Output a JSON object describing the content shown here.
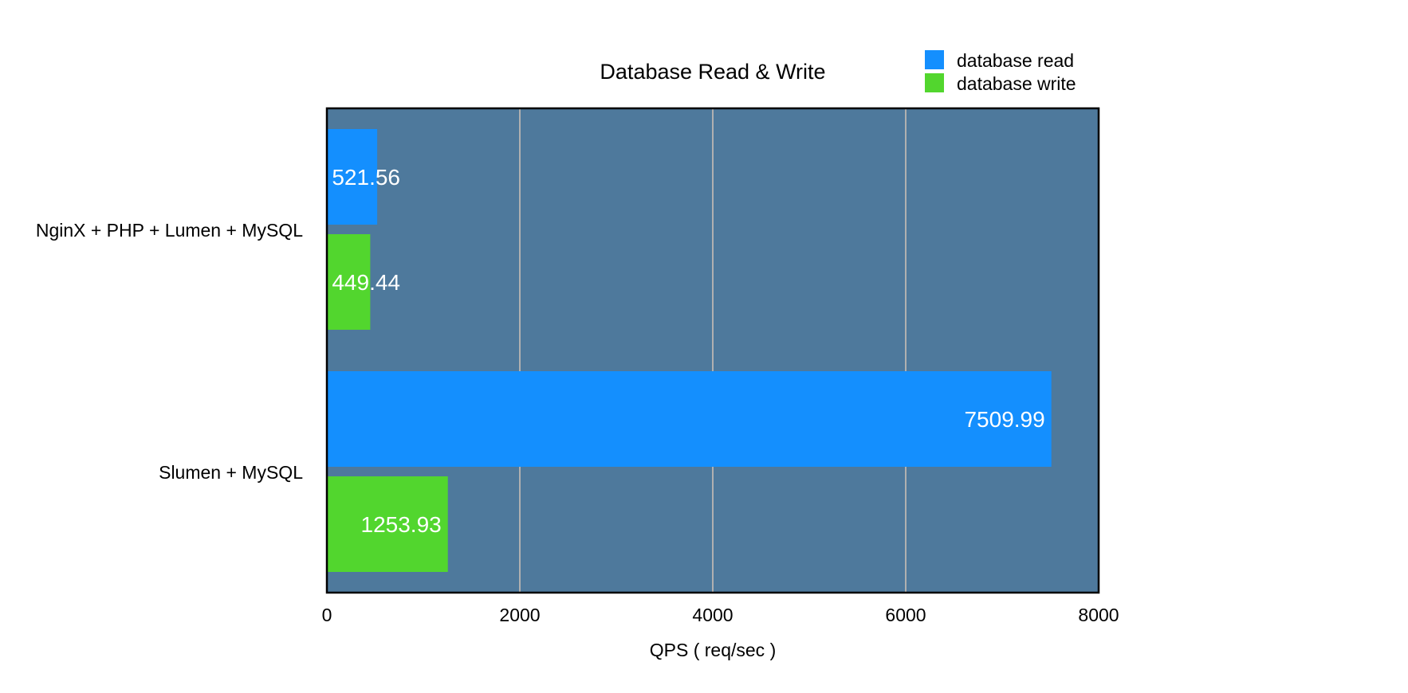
{
  "chart_data": {
    "type": "bar",
    "orientation": "horizontal",
    "title": "Database Read & Write",
    "xlabel": "QPS ( req/sec )",
    "ylabel": "",
    "xlim": [
      0,
      8000
    ],
    "xticks": [
      "0",
      "2000",
      "4000",
      "6000",
      "8000"
    ],
    "tick_values": [
      0,
      2000,
      4000,
      6000,
      8000
    ],
    "grid": "vertical",
    "legend_position": "top-right",
    "categories": [
      "NginX + PHP + Lumen + MySQL",
      "Slumen + MySQL"
    ],
    "series": [
      {
        "name": "database read",
        "color": "#148ffe",
        "values": [
          521.56,
          7509.99
        ],
        "labels": [
          "521.56",
          "7509.99"
        ]
      },
      {
        "name": "database write",
        "color": "#52d62e",
        "values": [
          449.44,
          1253.93
        ],
        "labels": [
          "449.44",
          "1253.93"
        ]
      }
    ],
    "colors": {
      "plot_background": "#4e799c",
      "gridline": "#b0b0b0"
    }
  }
}
